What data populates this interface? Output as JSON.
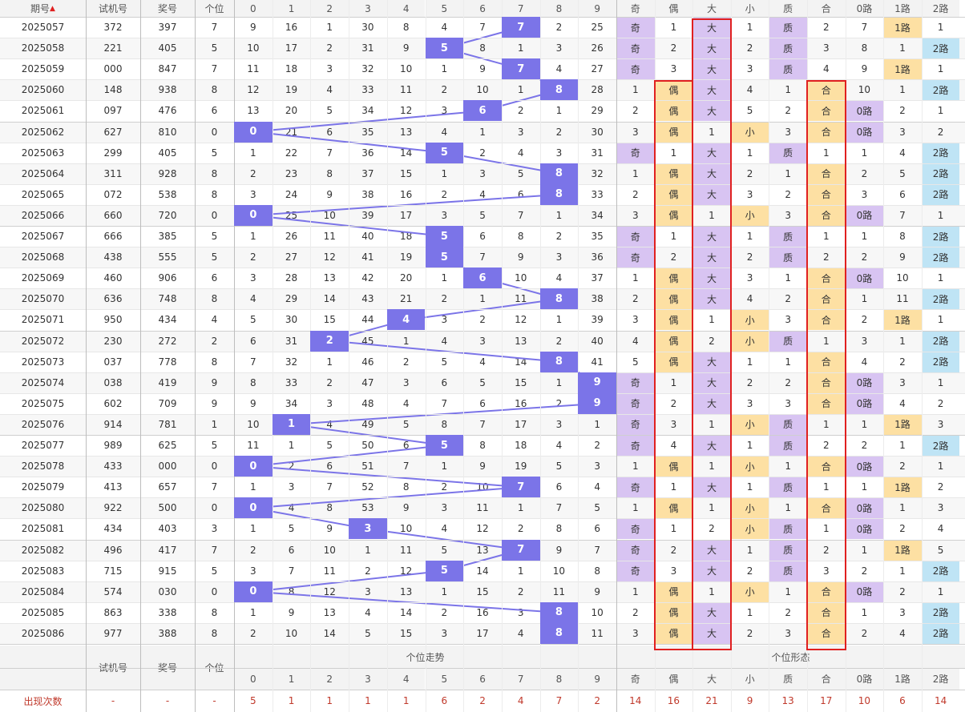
{
  "header": {
    "col_qihao": "期号",
    "col_shiji": "试机号",
    "col_jianghao": "奖号",
    "col_gewei": "个位",
    "sort_icon": "▲",
    "digits": [
      "0",
      "1",
      "2",
      "3",
      "4",
      "5",
      "6",
      "7",
      "8",
      "9"
    ],
    "forms": [
      "奇",
      "偶",
      "大",
      "小",
      "质",
      "合",
      "0路",
      "1路",
      "2路"
    ]
  },
  "footer": {
    "dash": "-",
    "col_shiji": "试机号",
    "col_jianghao": "奖号",
    "col_gewei": "个位",
    "trend_title": "个位走势",
    "form_title": "个位形态",
    "count_label": "出现次数",
    "count_dash": "-",
    "trend_counts": [
      "5",
      "1",
      "1",
      "1",
      "1",
      "6",
      "2",
      "4",
      "7",
      "2"
    ],
    "form_counts": [
      "14",
      "16",
      "21",
      "9",
      "13",
      "17",
      "10",
      "6",
      "14"
    ]
  },
  "colors": {
    "selected": "#7b74e8",
    "line": "#7b74e8",
    "odd_big_prime_road0": "#d8c4f2",
    "even_small_composite_road1": "#fde0a3",
    "road2": "#bfe4f5",
    "highlight_box": "#e02020"
  },
  "rows": [
    {
      "issue": "2025057",
      "test": "372",
      "prize": "397",
      "unit": "7",
      "trend": [
        "9",
        "16",
        "1",
        "30",
        "8",
        "4",
        "7",
        "7",
        "2",
        "25"
      ],
      "form": [
        "奇",
        "1",
        "大",
        "1",
        "质",
        "2",
        "7",
        "1路",
        "1"
      ]
    },
    {
      "issue": "2025058",
      "test": "221",
      "prize": "405",
      "unit": "5",
      "trend": [
        "10",
        "17",
        "2",
        "31",
        "9",
        "5",
        "8",
        "1",
        "3",
        "26"
      ],
      "form": [
        "奇",
        "2",
        "大",
        "2",
        "质",
        "3",
        "8",
        "1",
        "2路"
      ]
    },
    {
      "issue": "2025059",
      "test": "000",
      "prize": "847",
      "unit": "7",
      "trend": [
        "11",
        "18",
        "3",
        "32",
        "10",
        "1",
        "9",
        "7",
        "4",
        "27"
      ],
      "form": [
        "奇",
        "3",
        "大",
        "3",
        "质",
        "4",
        "9",
        "1路",
        "1"
      ]
    },
    {
      "issue": "2025060",
      "test": "148",
      "prize": "938",
      "unit": "8",
      "trend": [
        "12",
        "19",
        "4",
        "33",
        "11",
        "2",
        "10",
        "1",
        "8",
        "28"
      ],
      "form": [
        "1",
        "偶",
        "大",
        "4",
        "1",
        "合",
        "10",
        "1",
        "2路"
      ]
    },
    {
      "issue": "2025061",
      "test": "097",
      "prize": "476",
      "unit": "6",
      "trend": [
        "13",
        "20",
        "5",
        "34",
        "12",
        "3",
        "6",
        "2",
        "1",
        "29"
      ],
      "form": [
        "2",
        "偶",
        "大",
        "5",
        "2",
        "合",
        "0路",
        "2",
        "1"
      ]
    },
    {
      "issue": "2025062",
      "test": "627",
      "prize": "810",
      "unit": "0",
      "trend": [
        "0",
        "21",
        "6",
        "35",
        "13",
        "4",
        "1",
        "3",
        "2",
        "30"
      ],
      "form": [
        "3",
        "偶",
        "1",
        "小",
        "3",
        "合",
        "0路",
        "3",
        "2"
      ]
    },
    {
      "issue": "2025063",
      "test": "299",
      "prize": "405",
      "unit": "5",
      "trend": [
        "1",
        "22",
        "7",
        "36",
        "14",
        "5",
        "2",
        "4",
        "3",
        "31"
      ],
      "form": [
        "奇",
        "1",
        "大",
        "1",
        "质",
        "1",
        "1",
        "4",
        "2路"
      ]
    },
    {
      "issue": "2025064",
      "test": "311",
      "prize": "928",
      "unit": "8",
      "trend": [
        "2",
        "23",
        "8",
        "37",
        "15",
        "1",
        "3",
        "5",
        "8",
        "32"
      ],
      "form": [
        "1",
        "偶",
        "大",
        "2",
        "1",
        "合",
        "2",
        "5",
        "2路"
      ]
    },
    {
      "issue": "2025065",
      "test": "072",
      "prize": "538",
      "unit": "8",
      "trend": [
        "3",
        "24",
        "9",
        "38",
        "16",
        "2",
        "4",
        "6",
        "8",
        "33"
      ],
      "form": [
        "2",
        "偶",
        "大",
        "3",
        "2",
        "合",
        "3",
        "6",
        "2路"
      ]
    },
    {
      "issue": "2025066",
      "test": "660",
      "prize": "720",
      "unit": "0",
      "trend": [
        "0",
        "25",
        "10",
        "39",
        "17",
        "3",
        "5",
        "7",
        "1",
        "34"
      ],
      "form": [
        "3",
        "偶",
        "1",
        "小",
        "3",
        "合",
        "0路",
        "7",
        "1"
      ]
    },
    {
      "issue": "2025067",
      "test": "666",
      "prize": "385",
      "unit": "5",
      "trend": [
        "1",
        "26",
        "11",
        "40",
        "18",
        "5",
        "6",
        "8",
        "2",
        "35"
      ],
      "form": [
        "奇",
        "1",
        "大",
        "1",
        "质",
        "1",
        "1",
        "8",
        "2路"
      ]
    },
    {
      "issue": "2025068",
      "test": "438",
      "prize": "555",
      "unit": "5",
      "trend": [
        "2",
        "27",
        "12",
        "41",
        "19",
        "5",
        "7",
        "9",
        "3",
        "36"
      ],
      "form": [
        "奇",
        "2",
        "大",
        "2",
        "质",
        "2",
        "2",
        "9",
        "2路"
      ]
    },
    {
      "issue": "2025069",
      "test": "460",
      "prize": "906",
      "unit": "6",
      "trend": [
        "3",
        "28",
        "13",
        "42",
        "20",
        "1",
        "6",
        "10",
        "4",
        "37"
      ],
      "form": [
        "1",
        "偶",
        "大",
        "3",
        "1",
        "合",
        "0路",
        "10",
        "1"
      ]
    },
    {
      "issue": "2025070",
      "test": "636",
      "prize": "748",
      "unit": "8",
      "trend": [
        "4",
        "29",
        "14",
        "43",
        "21",
        "2",
        "1",
        "11",
        "8",
        "38"
      ],
      "form": [
        "2",
        "偶",
        "大",
        "4",
        "2",
        "合",
        "1",
        "11",
        "2路"
      ]
    },
    {
      "issue": "2025071",
      "test": "950",
      "prize": "434",
      "unit": "4",
      "trend": [
        "5",
        "30",
        "15",
        "44",
        "4",
        "3",
        "2",
        "12",
        "1",
        "39"
      ],
      "form": [
        "3",
        "偶",
        "1",
        "小",
        "3",
        "合",
        "2",
        "1路",
        "1"
      ]
    },
    {
      "issue": "2025072",
      "test": "230",
      "prize": "272",
      "unit": "2",
      "trend": [
        "6",
        "31",
        "2",
        "45",
        "1",
        "4",
        "3",
        "13",
        "2",
        "40"
      ],
      "form": [
        "4",
        "偶",
        "2",
        "小",
        "质",
        "1",
        "3",
        "1",
        "2路"
      ]
    },
    {
      "issue": "2025073",
      "test": "037",
      "prize": "778",
      "unit": "8",
      "trend": [
        "7",
        "32",
        "1",
        "46",
        "2",
        "5",
        "4",
        "14",
        "8",
        "41"
      ],
      "form": [
        "5",
        "偶",
        "大",
        "1",
        "1",
        "合",
        "4",
        "2",
        "2路"
      ]
    },
    {
      "issue": "2025074",
      "test": "038",
      "prize": "419",
      "unit": "9",
      "trend": [
        "8",
        "33",
        "2",
        "47",
        "3",
        "6",
        "5",
        "15",
        "1",
        "9"
      ],
      "form": [
        "奇",
        "1",
        "大",
        "2",
        "2",
        "合",
        "0路",
        "3",
        "1"
      ]
    },
    {
      "issue": "2025075",
      "test": "602",
      "prize": "709",
      "unit": "9",
      "trend": [
        "9",
        "34",
        "3",
        "48",
        "4",
        "7",
        "6",
        "16",
        "2",
        "9"
      ],
      "form": [
        "奇",
        "2",
        "大",
        "3",
        "3",
        "合",
        "0路",
        "4",
        "2"
      ]
    },
    {
      "issue": "2025076",
      "test": "914",
      "prize": "781",
      "unit": "1",
      "trend": [
        "10",
        "1",
        "4",
        "49",
        "5",
        "8",
        "7",
        "17",
        "3",
        "1"
      ],
      "form": [
        "奇",
        "3",
        "1",
        "小",
        "质",
        "1",
        "1",
        "1路",
        "3"
      ]
    },
    {
      "issue": "2025077",
      "test": "989",
      "prize": "625",
      "unit": "5",
      "trend": [
        "11",
        "1",
        "5",
        "50",
        "6",
        "5",
        "8",
        "18",
        "4",
        "2"
      ],
      "form": [
        "奇",
        "4",
        "大",
        "1",
        "质",
        "2",
        "2",
        "1",
        "2路"
      ]
    },
    {
      "issue": "2025078",
      "test": "433",
      "prize": "000",
      "unit": "0",
      "trend": [
        "0",
        "2",
        "6",
        "51",
        "7",
        "1",
        "9",
        "19",
        "5",
        "3"
      ],
      "form": [
        "1",
        "偶",
        "1",
        "小",
        "1",
        "合",
        "0路",
        "2",
        "1"
      ]
    },
    {
      "issue": "2025079",
      "test": "413",
      "prize": "657",
      "unit": "7",
      "trend": [
        "1",
        "3",
        "7",
        "52",
        "8",
        "2",
        "10",
        "7",
        "6",
        "4"
      ],
      "form": [
        "奇",
        "1",
        "大",
        "1",
        "质",
        "1",
        "1",
        "1路",
        "2"
      ]
    },
    {
      "issue": "2025080",
      "test": "922",
      "prize": "500",
      "unit": "0",
      "trend": [
        "0",
        "4",
        "8",
        "53",
        "9",
        "3",
        "11",
        "1",
        "7",
        "5"
      ],
      "form": [
        "1",
        "偶",
        "1",
        "小",
        "1",
        "合",
        "0路",
        "1",
        "3"
      ]
    },
    {
      "issue": "2025081",
      "test": "434",
      "prize": "403",
      "unit": "3",
      "trend": [
        "1",
        "5",
        "9",
        "3",
        "10",
        "4",
        "12",
        "2",
        "8",
        "6"
      ],
      "form": [
        "奇",
        "1",
        "2",
        "小",
        "质",
        "1",
        "0路",
        "2",
        "4"
      ]
    },
    {
      "issue": "2025082",
      "test": "496",
      "prize": "417",
      "unit": "7",
      "trend": [
        "2",
        "6",
        "10",
        "1",
        "11",
        "5",
        "13",
        "7",
        "9",
        "7"
      ],
      "form": [
        "奇",
        "2",
        "大",
        "1",
        "质",
        "2",
        "1",
        "1路",
        "5"
      ]
    },
    {
      "issue": "2025083",
      "test": "715",
      "prize": "915",
      "unit": "5",
      "trend": [
        "3",
        "7",
        "11",
        "2",
        "12",
        "5",
        "14",
        "1",
        "10",
        "8"
      ],
      "form": [
        "奇",
        "3",
        "大",
        "2",
        "质",
        "3",
        "2",
        "1",
        "2路"
      ]
    },
    {
      "issue": "2025084",
      "test": "574",
      "prize": "030",
      "unit": "0",
      "trend": [
        "0",
        "8",
        "12",
        "3",
        "13",
        "1",
        "15",
        "2",
        "11",
        "9"
      ],
      "form": [
        "1",
        "偶",
        "1",
        "小",
        "1",
        "合",
        "0路",
        "2",
        "1"
      ]
    },
    {
      "issue": "2025085",
      "test": "863",
      "prize": "338",
      "unit": "8",
      "trend": [
        "1",
        "9",
        "13",
        "4",
        "14",
        "2",
        "16",
        "3",
        "8",
        "10"
      ],
      "form": [
        "2",
        "偶",
        "大",
        "1",
        "2",
        "合",
        "1",
        "3",
        "2路"
      ]
    },
    {
      "issue": "2025086",
      "test": "977",
      "prize": "388",
      "unit": "8",
      "trend": [
        "2",
        "10",
        "14",
        "5",
        "15",
        "3",
        "17",
        "4",
        "8",
        "11"
      ],
      "form": [
        "3",
        "偶",
        "大",
        "2",
        "3",
        "合",
        "2",
        "4",
        "2路"
      ]
    }
  ]
}
